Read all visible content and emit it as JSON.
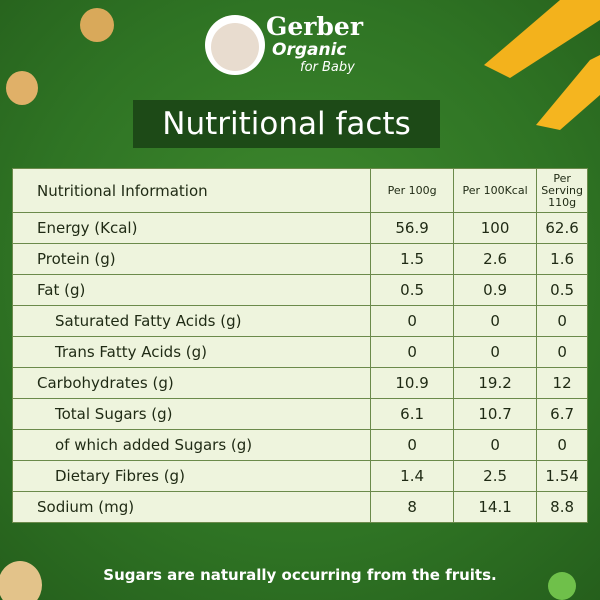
{
  "brand": {
    "name": "Gerber",
    "line": "Organic",
    "tagline": "for Baby"
  },
  "title": "Nutritional facts",
  "table": {
    "headers": [
      "Nutritional Information",
      "Per 100g",
      "Per 100Kcal",
      "Per Serving 110g"
    ],
    "rows": [
      [
        "Energy (Kcal)",
        56.9,
        100,
        62.6
      ],
      [
        "Protein (g)",
        1.5,
        2.6,
        1.6
      ],
      [
        "Fat (g)",
        0.5,
        0.9,
        0.5
      ],
      [
        "Saturated Fatty Acids (g)",
        0,
        0,
        0
      ],
      [
        "Trans Fatty Acids (g)",
        0,
        0,
        0
      ],
      [
        "Carbohydrates (g)",
        10.9,
        19.2,
        12
      ],
      [
        "Total Sugars (g)",
        6.1,
        10.7,
        6.7
      ],
      [
        "of which added Sugars (g)",
        0,
        0,
        0
      ],
      [
        "Dietary Fibres (g)",
        1.4,
        2.5,
        1.54
      ],
      [
        "Sodium (mg)",
        8,
        14.1,
        8.8
      ]
    ]
  },
  "footer": "Sugars are naturally occurring from the fruits."
}
